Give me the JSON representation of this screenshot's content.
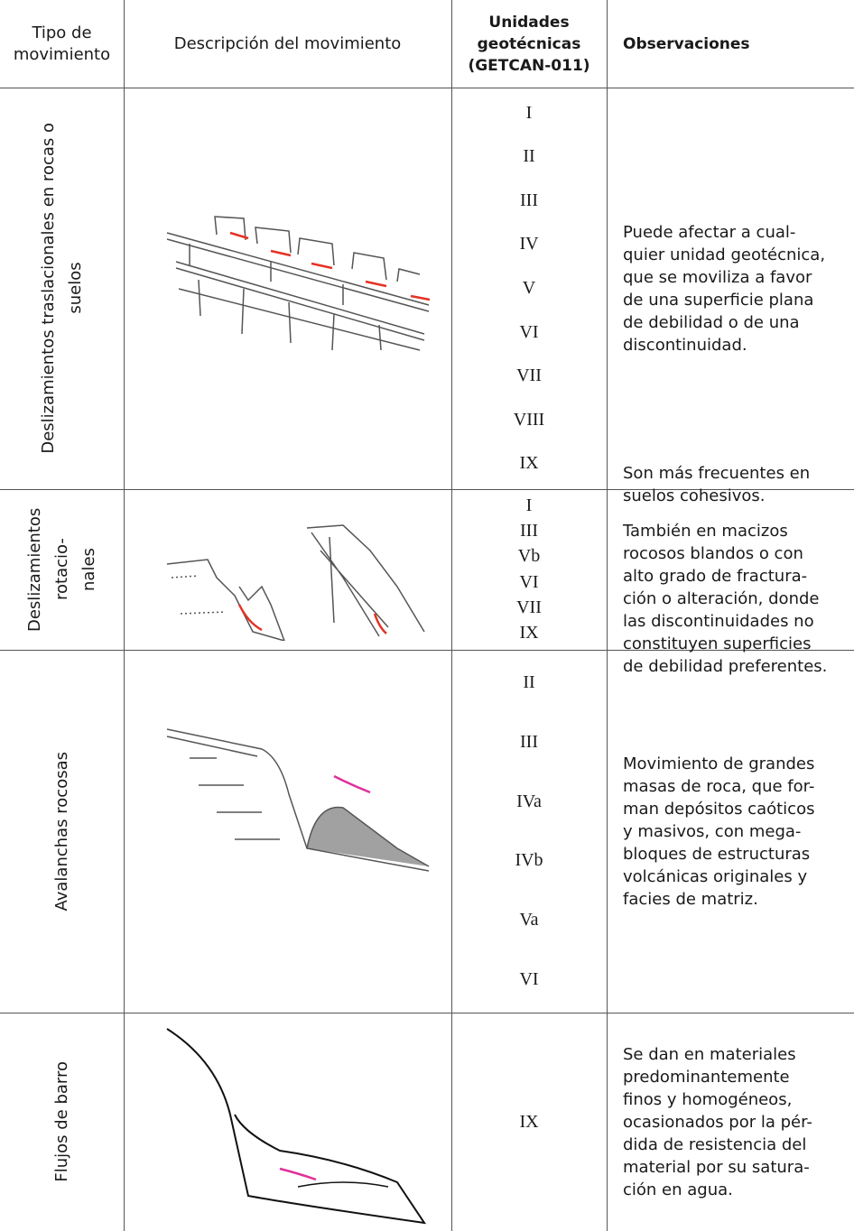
{
  "header": [
    "Tipo de movimiento",
    "Descripción del movimiento",
    "Unidades geotécnicas (GETCAN-011)",
    "Observaciones"
  ],
  "rows": [
    {
      "type": [
        "Deslizamientos traslacionales en rocas o",
        "suelos"
      ],
      "units": [
        "I",
        "II",
        "III",
        "IV",
        "V",
        "VI",
        "VII",
        "VIII",
        "IX"
      ],
      "observations": [
        [
          "Puede afectar a cual-",
          "quier unidad geotécnica,",
          "que se moviliza a favor",
          "de una superficie plana",
          "de debilidad o de una",
          "discontinuidad."
        ]
      ]
    },
    {
      "type": [
        "Deslizamientos rotacio-",
        "nales"
      ],
      "units": [
        "I",
        "III",
        "Vb",
        "VI",
        "VII",
        "IX"
      ],
      "observations": [
        [
          "Son más frecuentes en",
          "suelos cohesivos."
        ],
        [
          "También en macizos",
          "rocosos blandos o con",
          "alto grado de fractura-",
          "ción o alteración, donde",
          "las discontinuidades no",
          "constituyen superficies",
          "de debilidad preferentes."
        ]
      ]
    },
    {
      "type": [
        "Avalanchas rocosas"
      ],
      "units": [
        "II",
        "III",
        "IVa",
        "IVb",
        "Va",
        "VI"
      ],
      "observations": [
        [
          "Movimiento de grandes",
          "masas de roca, que for-",
          "man depósitos caóticos",
          "y masivos, con mega-",
          "bloques de estructuras",
          "volcánicas originales y",
          "facies de matriz."
        ]
      ]
    },
    {
      "type": [
        "Flujos de barro"
      ],
      "units": [
        "IX"
      ],
      "observations": [
        [
          "Se dan en materiales",
          "predominantemente",
          "finos y homogéneos,",
          "ocasionados por la pér-",
          "dida de resistencia del",
          "material por su satura-",
          "ción en agua."
        ]
      ]
    }
  ]
}
